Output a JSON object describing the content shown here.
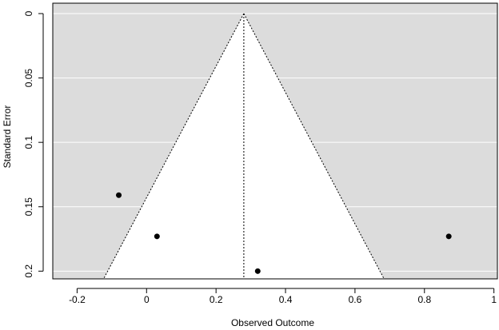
{
  "chart_data": {
    "type": "scatter",
    "title": "",
    "xlabel": "Observed Outcome",
    "ylabel": "Standard Error",
    "xlim": [
      -0.27,
      1.01
    ],
    "ylim": [
      0,
      0.206
    ],
    "y_reversed": true,
    "grid": "horizontal, white",
    "background_color": "#dcdcdc",
    "funnel_fill_color": "#ffffff",
    "pooled_estimate": 0.28,
    "funnel_base_se": 0.206,
    "x_ticks": [
      {
        "value": -0.2,
        "label": "-0.2"
      },
      {
        "value": 0,
        "label": "0"
      },
      {
        "value": 0.2,
        "label": "0.2"
      },
      {
        "value": 0.4,
        "label": "0.4"
      },
      {
        "value": 0.6,
        "label": "0.6"
      },
      {
        "value": 0.8,
        "label": "0.8"
      },
      {
        "value": 1,
        "label": "1"
      }
    ],
    "y_ticks": [
      {
        "value": 0,
        "label": "0"
      },
      {
        "value": 0.05,
        "label": "0.05"
      },
      {
        "value": 0.1,
        "label": "0.1"
      },
      {
        "value": 0.15,
        "label": "0.15"
      },
      {
        "value": 0.2,
        "label": "0.2"
      }
    ],
    "points": [
      {
        "x": -0.08,
        "y": 0.141
      },
      {
        "x": 0.03,
        "y": 0.173
      },
      {
        "x": 0.32,
        "y": 0.2
      },
      {
        "x": 0.87,
        "y": 0.173
      }
    ]
  }
}
